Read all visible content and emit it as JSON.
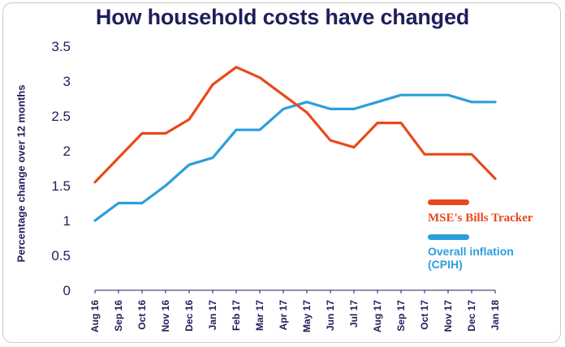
{
  "chart_data": {
    "type": "line",
    "title": "How household costs have changed",
    "ylabel": "Percentage change over 12 months",
    "xlabel": "",
    "ylim": [
      0,
      3.5
    ],
    "yticks": [
      {
        "value": 0,
        "label": "0"
      },
      {
        "value": 0.5,
        "label": "0.5"
      },
      {
        "value": 1,
        "label": "1"
      },
      {
        "value": 1.5,
        "label": "1.5"
      },
      {
        "value": 2,
        "label": "2"
      },
      {
        "value": 2.5,
        "label": "2.5"
      },
      {
        "value": 3,
        "label": "3"
      },
      {
        "value": 3.5,
        "label": "3.5"
      }
    ],
    "categories": [
      "Aug 16",
      "Sep 16",
      "Oct 16",
      "Nov 16",
      "Dec 16",
      "Jan 17",
      "Feb 17",
      "Mar 17",
      "Apr 17",
      "May 17",
      "Jun 17",
      "Jul 17",
      "Aug 17",
      "Sep 17",
      "Oct 17",
      "Nov 17",
      "Dec 17",
      "Jan 18"
    ],
    "series": [
      {
        "name": "MSE's Bills Tracker",
        "color": "#e8491d",
        "values": [
          1.55,
          1.9,
          2.25,
          2.25,
          2.45,
          2.95,
          3.2,
          3.05,
          2.8,
          2.55,
          2.15,
          2.05,
          2.4,
          2.4,
          1.95,
          1.95,
          1.95,
          1.6
        ]
      },
      {
        "name": "Overall inflation\n(CPIH)",
        "color": "#2b9fdb",
        "values": [
          1.0,
          1.25,
          1.25,
          1.5,
          1.8,
          1.9,
          2.3,
          2.3,
          2.6,
          2.7,
          2.6,
          2.6,
          2.7,
          2.8,
          2.8,
          2.8,
          2.7,
          2.7
        ]
      }
    ],
    "legend": {
      "position": "right"
    }
  }
}
